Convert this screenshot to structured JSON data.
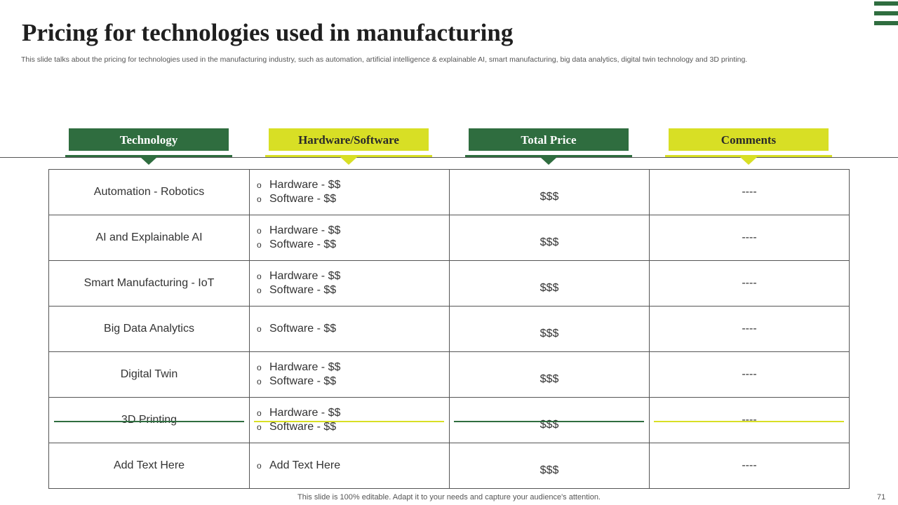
{
  "title": "Pricing for technologies used in manufacturing",
  "subtitle": "This slide talks about the pricing for technologies used in the manufacturing industry, such as automation, artificial intelligence & explainable AI, smart manufacturing, big data analytics, digital twin technology and 3D printing.",
  "headers": {
    "technology": "Technology",
    "hardware_software": "Hardware/Software",
    "total_price": "Total Price",
    "comments": "Comments"
  },
  "rows": [
    {
      "tech": "Automation - Robotics",
      "items": [
        "Hardware - $$",
        "Software - $$"
      ],
      "price": "$$$",
      "comment": "----"
    },
    {
      "tech": "AI and Explainable AI",
      "items": [
        "Hardware - $$",
        "Software - $$"
      ],
      "price": "$$$",
      "comment": "----"
    },
    {
      "tech": "Smart Manufacturing  - IoT",
      "items": [
        "Hardware - $$",
        "Software - $$"
      ],
      "price": "$$$",
      "comment": "----"
    },
    {
      "tech": "Big Data Analytics",
      "items": [
        "Software - $$"
      ],
      "price": "$$$",
      "comment": "----"
    },
    {
      "tech": "Digital Twin",
      "items": [
        "Hardware - $$",
        "Software - $$"
      ],
      "price": "$$$",
      "comment": "----"
    },
    {
      "tech": "3D Printing",
      "items": [
        "Hardware - $$",
        "Software - $$"
      ],
      "price": "$$$",
      "comment": "----"
    },
    {
      "tech": "Add Text Here",
      "items": [
        "Add Text Here"
      ],
      "price": "$$$",
      "comment": "----"
    }
  ],
  "bullet": "o",
  "footer": "This slide is 100% editable. Adapt it to your needs and capture your audience's attention.",
  "page_number": "71",
  "colors": {
    "green": "#2f6d3f",
    "yellow": "#d8df25"
  },
  "icons": {
    "corner_logo": "menu-bars-icon",
    "header_pointer": "down-triangle-icon"
  }
}
